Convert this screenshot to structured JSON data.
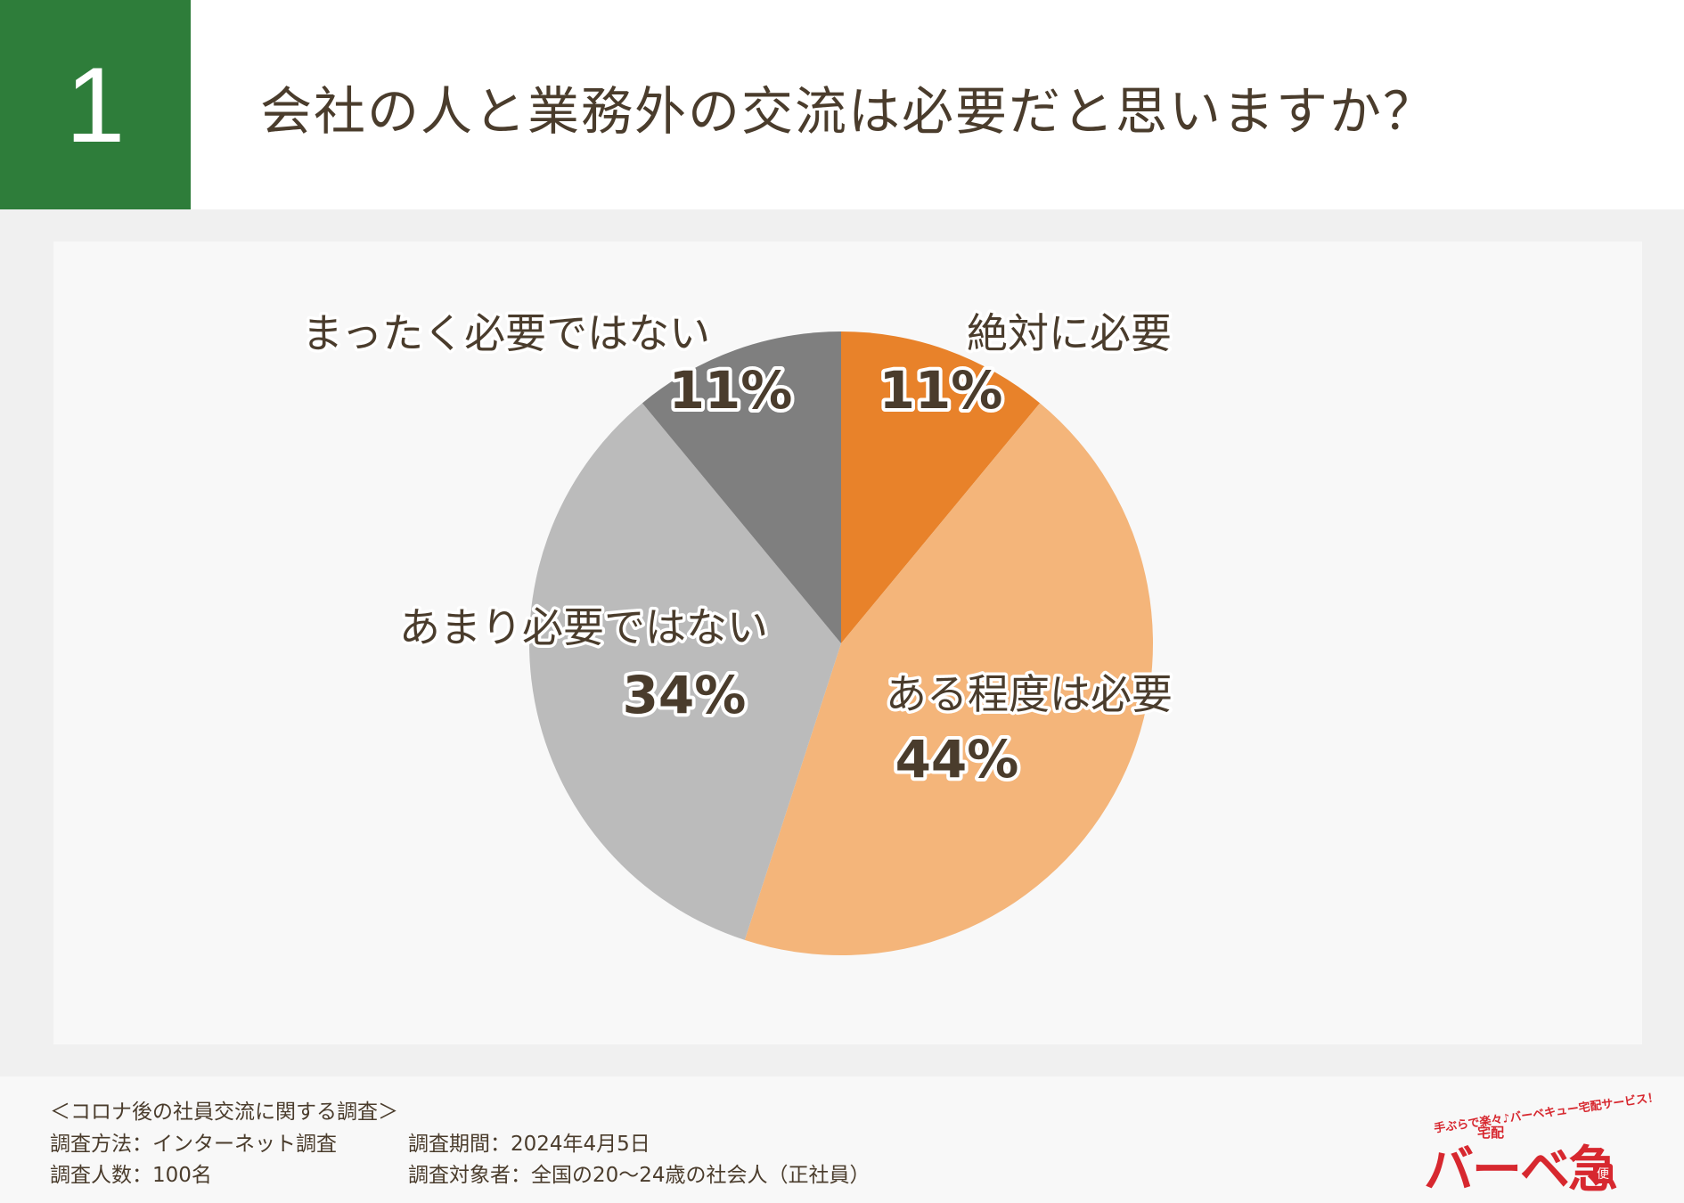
{
  "header": {
    "number": "1",
    "question": "会社の人と業務外の交流は必要だと思いますか？"
  },
  "chart_data": {
    "type": "pie",
    "title": "会社の人と業務外の交流は必要だと思いますか？",
    "slices": [
      {
        "label": "絶対に必要",
        "value": 11,
        "pct_label": "11%",
        "color": "#e8822a"
      },
      {
        "label": "ある程度は必要",
        "value": 44,
        "pct_label": "44%",
        "color": "#f4b57a"
      },
      {
        "label": "あまり必要ではない",
        "value": 34,
        "pct_label": "34%",
        "color": "#bbbbbb"
      },
      {
        "label": "まったく必要ではない",
        "value": 11,
        "pct_label": "11%",
        "color": "#7f7f7f"
      }
    ]
  },
  "footer": {
    "survey_title": "＜コロナ後の社員交流に関する調査＞",
    "method": "調査方法：インターネット調査",
    "period": "調査期間：2024年4月5日",
    "count": "調査人数：100名",
    "target": "調査対象者：全国の20〜24歳の社会人（正社員）"
  },
  "logo": {
    "tagline": "手ぶらで楽々♪バーベキュー宅配サービス！",
    "small": "宅配",
    "brand": "バーベ急",
    "bin": "便"
  }
}
